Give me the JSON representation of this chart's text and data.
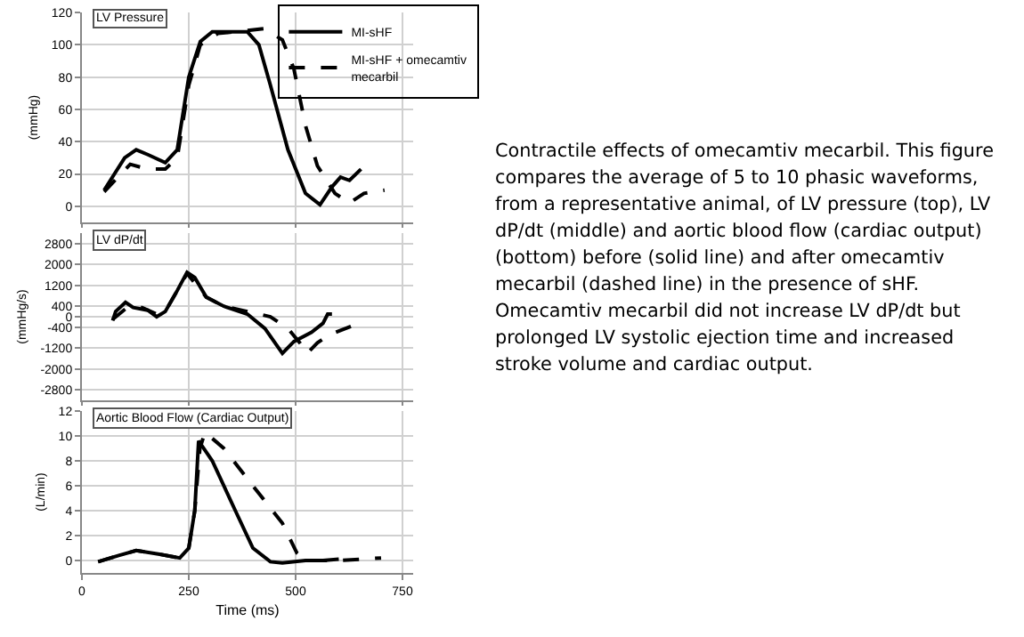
{
  "chart_data": [
    {
      "type": "line",
      "title": "LV Pressure",
      "ylabel": "(mmHg)",
      "xlim": [
        0,
        775
      ],
      "xticks": [
        0,
        250,
        500,
        750
      ],
      "ylim": [
        -10,
        120
      ],
      "yticks": [
        0,
        20,
        40,
        60,
        80,
        100,
        120
      ],
      "grid": true,
      "legend": "top right",
      "tick_labels": "y",
      "series": [
        {
          "name": "MI-sHF",
          "color": "#000000",
          "line_style": "solid",
          "x": [
            52,
            100,
            127,
            154,
            195,
            223,
            250,
            277,
            305,
            387,
            414,
            441,
            482,
            523,
            557,
            585,
            605,
            626,
            653
          ],
          "values": [
            10,
            30,
            35,
            32,
            27,
            35,
            80,
            102,
            108,
            108,
            100,
            75,
            35,
            8,
            1,
            12,
            18,
            16,
            23
          ]
        },
        {
          "name": "MI-sHF + omecamtiv mecarbil",
          "color": "#000000",
          "line_style": "dashed",
          "x": [
            52,
            113,
            154,
            195,
            223,
            250,
            277,
            318,
            428,
            469,
            496,
            523,
            551,
            592,
            626,
            660,
            708
          ],
          "values": [
            9,
            26,
            23,
            23,
            30,
            75,
            100,
            107,
            110,
            103,
            85,
            50,
            25,
            8,
            2,
            8,
            10
          ]
        }
      ]
    },
    {
      "type": "line",
      "title": "LV dP/dt",
      "ylabel": "(mmHg/s)",
      "xlim": [
        0,
        775
      ],
      "xticks": [
        0,
        250,
        500,
        750
      ],
      "ylim": [
        -3200,
        3200
      ],
      "yticks": [
        2800,
        2000,
        1200,
        400,
        0,
        -400,
        -1200,
        -2000,
        -2800
      ],
      "grid": true,
      "tick_labels": "y",
      "series": [
        {
          "color": "#000000",
          "line_style": "solid",
          "x": [
            72,
            79,
            102,
            120,
            154,
            175,
            195,
            223,
            246,
            264,
            291,
            332,
            387,
            428,
            469,
            496,
            537,
            564,
            575,
            585
          ],
          "values": [
            -150,
            200,
            550,
            350,
            250,
            0,
            200,
            1000,
            1700,
            1500,
            750,
            400,
            100,
            -450,
            -1400,
            -950,
            -600,
            -250,
            100,
            100
          ]
        },
        {
          "color": "#000000",
          "line_style": "dashed",
          "x": [
            72,
            102,
            141,
            175,
            195,
            246,
            291,
            332,
            387,
            441,
            482,
            510,
            527,
            551,
            578,
            632
          ],
          "values": [
            -100,
            300,
            350,
            100,
            200,
            1650,
            750,
            400,
            200,
            0,
            -450,
            -1000,
            -1400,
            -1000,
            -700,
            -350
          ]
        }
      ]
    },
    {
      "type": "line",
      "title": "Aortic Blood Flow (Cardiac Output)",
      "xlabel": "Time (ms)",
      "ylabel": "(L/min)",
      "xlim": [
        0,
        775
      ],
      "xticks": [
        0,
        250,
        500,
        750
      ],
      "ylim": [
        -1,
        12
      ],
      "yticks": [
        0,
        2,
        4,
        6,
        8,
        10,
        12
      ],
      "grid": true,
      "series": [
        {
          "color": "#000000",
          "line_style": "solid",
          "x": [
            38,
            86,
            127,
            182,
            229,
            250,
            264,
            273,
            305,
            359,
            400,
            441,
            469,
            523,
            564,
            601
          ],
          "values": [
            -0.1,
            0.4,
            0.8,
            0.5,
            0.2,
            1,
            4,
            9.6,
            8,
            4,
            1,
            -0.1,
            -0.2,
            0,
            0,
            0.1
          ]
        },
        {
          "color": "#000000",
          "line_style": "dashed",
          "x": [
            38,
            86,
            127,
            182,
            229,
            250,
            264,
            276,
            288,
            332,
            400,
            469,
            503,
            523,
            601,
            700
          ],
          "values": [
            -0.1,
            0.4,
            0.8,
            0.5,
            0.2,
            1,
            4,
            9,
            10.3,
            9,
            6,
            3,
            0.6,
            0,
            0,
            0.2
          ]
        }
      ]
    },
    {
      "type": "other",
      "annotations": [
        "Contractile effects of omecamtiv mecarbil. This figure compares the average of 5 to 10 phasic waveforms, from a representative animal, of LV pressure (top), LV dP/dt (middle) and aortic blood flow (cardiac output) (bottom) before (solid line) and after omecamtiv mecarbil (dashed line) in the presence of sHF. Omecamtiv mecarbil did not increase LV dP/dt but prolonged LV systolic ejection time and increased stroke volume and cardiac output."
      ]
    }
  ]
}
